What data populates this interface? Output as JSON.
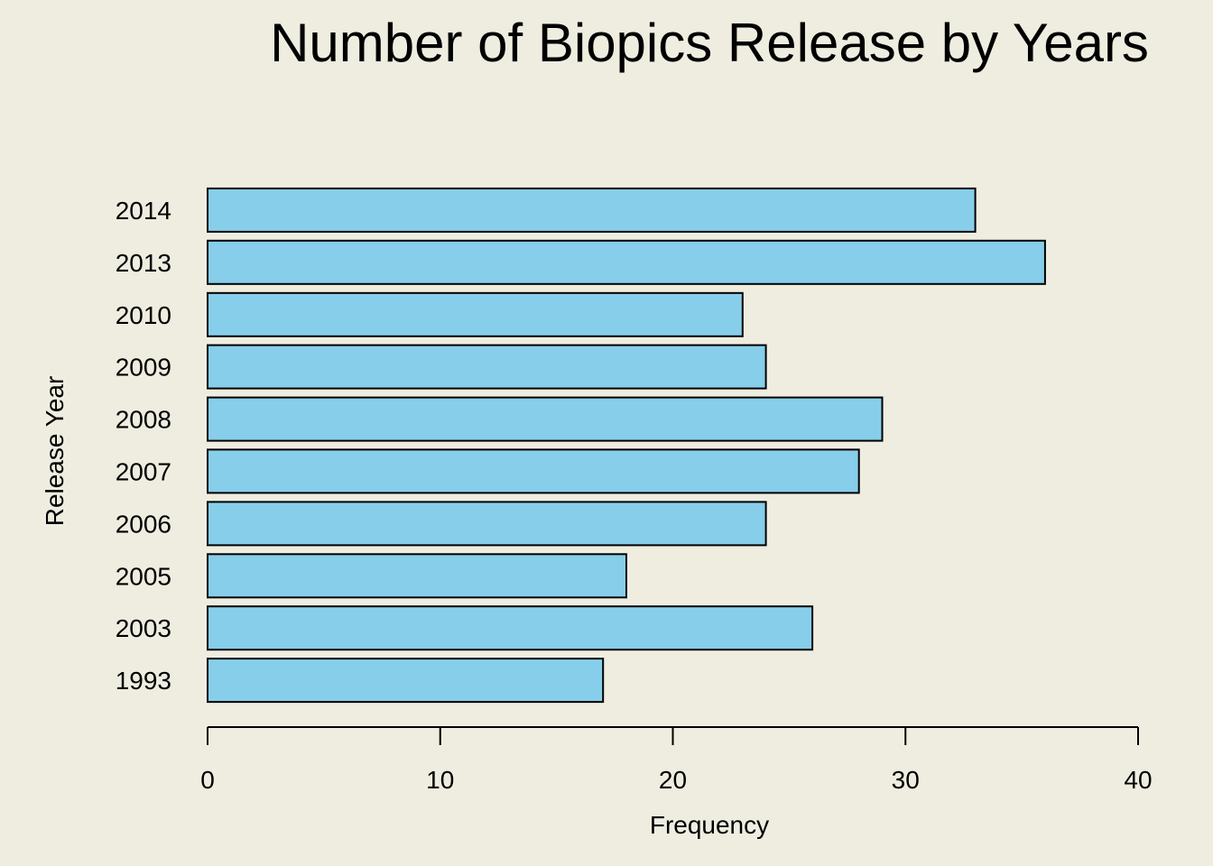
{
  "chart_data": {
    "type": "bar",
    "orientation": "horizontal",
    "title": "Number of Biopics Release by Years",
    "xlabel": "Frequency",
    "ylabel": "Release Year",
    "categories": [
      "1993",
      "2003",
      "2005",
      "2006",
      "2007",
      "2008",
      "2009",
      "2010",
      "2013",
      "2014"
    ],
    "values": [
      17,
      26,
      18,
      24,
      28,
      29,
      24,
      23,
      36,
      33
    ],
    "xlim": [
      0,
      40
    ],
    "x_ticks": [
      "0",
      "10",
      "20",
      "30",
      "40"
    ],
    "grid": false,
    "colors": {
      "bar_fill": "#87ceeb",
      "bar_stroke": "#000000",
      "background": "#eeede0"
    }
  }
}
